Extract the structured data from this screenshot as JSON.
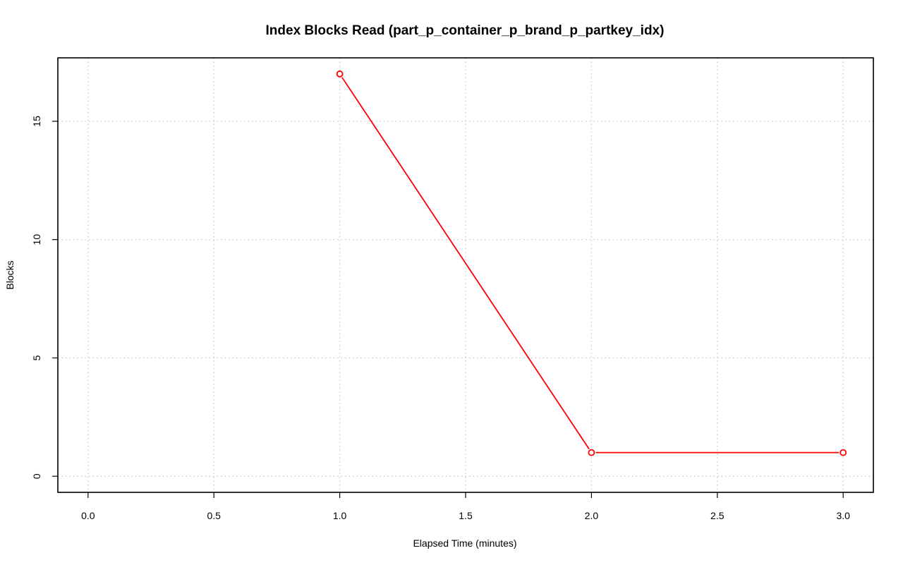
{
  "chart_data": {
    "type": "line",
    "title": "Index Blocks Read (part_p_container_p_brand_p_partkey_idx)",
    "xlabel": "Elapsed Time (minutes)",
    "ylabel": "Blocks",
    "xlim": [
      -0.12,
      3.12
    ],
    "ylim": [
      -0.68,
      17.68
    ],
    "x_ticks": [
      0.0,
      0.5,
      1.0,
      1.5,
      2.0,
      2.5,
      3.0
    ],
    "x_tick_labels": [
      "0.0",
      "0.5",
      "1.0",
      "1.5",
      "2.0",
      "2.5",
      "3.0"
    ],
    "y_ticks": [
      0,
      5,
      10,
      15
    ],
    "y_tick_labels": [
      "0",
      "5",
      "10",
      "15"
    ],
    "grid": true,
    "series": [
      {
        "color": "#ff0000",
        "marker": "open-circle",
        "x": [
          1.0,
          2.0,
          3.0
        ],
        "values": [
          17,
          1,
          1
        ]
      }
    ]
  }
}
